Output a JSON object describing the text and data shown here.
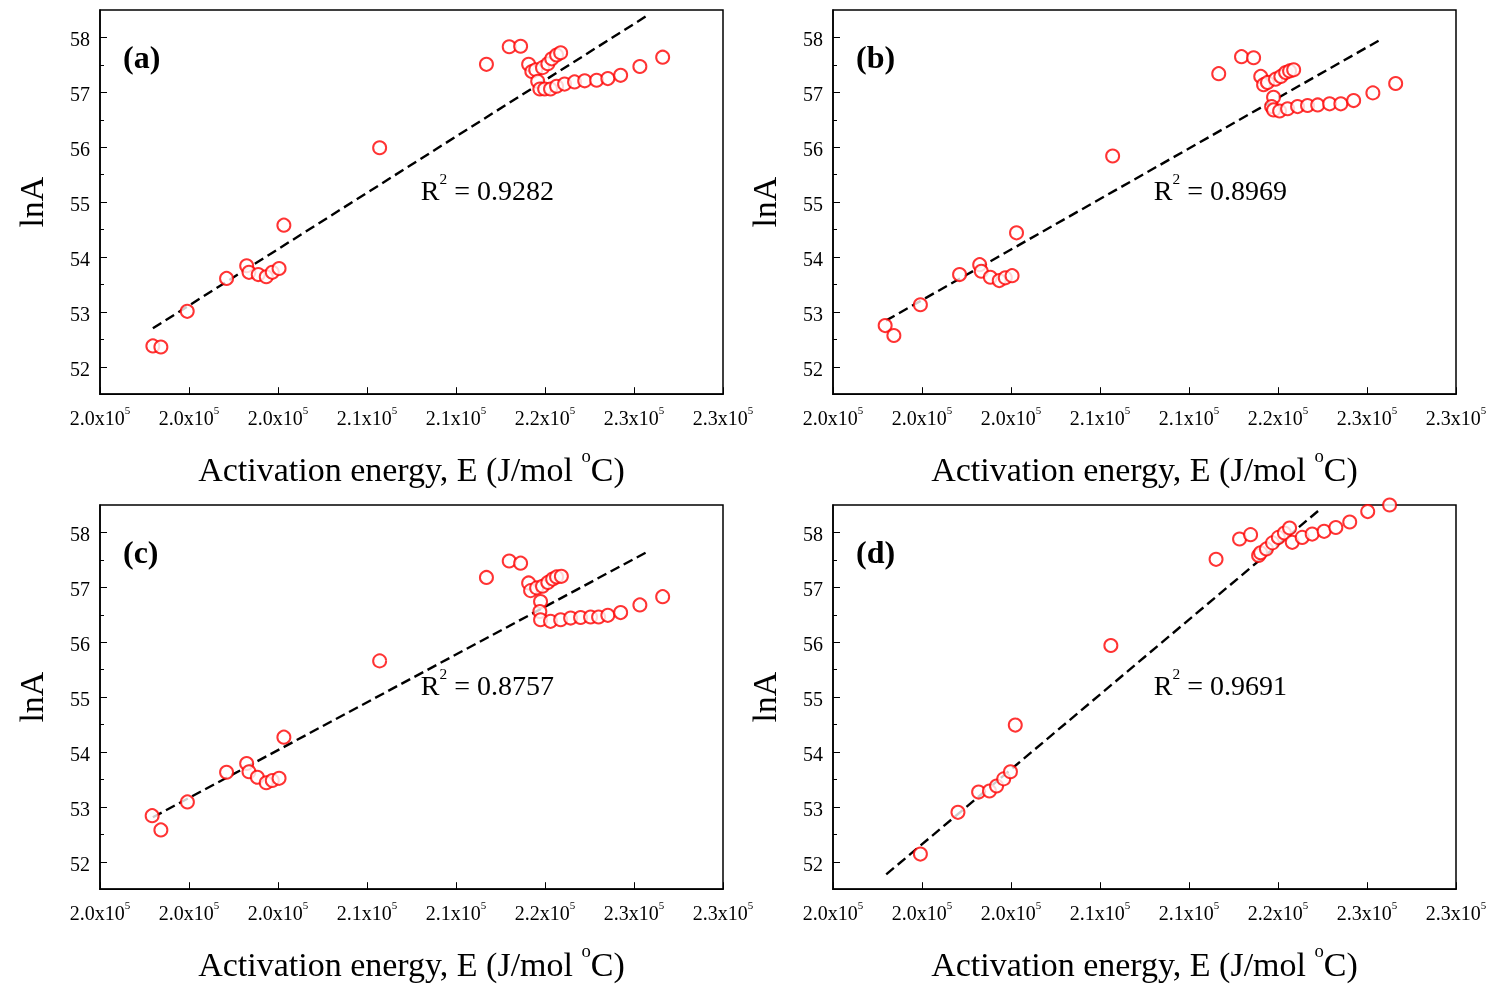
{
  "chart_data": [
    {
      "type": "scatter",
      "title": "(a)",
      "xlabel": "Activation energy, E (J/mol $^{o}$C)",
      "ylabel": "lnA",
      "annotations": [
        "R$^{2}$ = 0.9282"
      ],
      "xlim": [
        195000,
        230000
      ],
      "ylim": [
        51.5,
        58.5
      ],
      "xticks": [
        {
          "value": 195000,
          "label": "2.0x10$^{5}$"
        },
        {
          "value": 200000,
          "label": "2.0x10$^{5}$"
        },
        {
          "value": 205000,
          "label": "2.0x10$^{5}$"
        },
        {
          "value": 210000,
          "label": "2.1x10$^{5}$"
        },
        {
          "value": 215000,
          "label": "2.1x10$^{5}$"
        },
        {
          "value": 220000,
          "label": "2.2x10$^{5}$"
        },
        {
          "value": 225000,
          "label": "2.3x10$^{5}$"
        },
        {
          "value": 230000,
          "label": "2.3x10$^{5}$"
        }
      ],
      "yticks": [
        52,
        53,
        54,
        55,
        56,
        57,
        58
      ],
      "series": [
        {
          "type": "scatter",
          "color": "#ff0000",
          "marker": "circle",
          "x": [
            197970,
            198420,
            199900,
            202110,
            203240,
            203370,
            203890,
            204340,
            204680,
            205060,
            205330,
            210710,
            216710,
            217990,
            218630,
            219080,
            219260,
            219480,
            219590,
            219710,
            219980,
            220310,
            220650,
            221100,
            221660,
            222230,
            222900,
            223530,
            224250,
            225330,
            226610,
            219860,
            220160,
            220380,
            220650,
            220880
          ],
          "values": [
            52.38,
            52.36,
            53.01,
            53.61,
            53.84,
            53.72,
            53.68,
            53.64,
            53.72,
            53.79,
            54.58,
            55.99,
            57.51,
            57.83,
            57.84,
            57.51,
            57.38,
            57.41,
            57.2,
            57.06,
            57.06,
            57.06,
            57.11,
            57.15,
            57.19,
            57.21,
            57.22,
            57.25,
            57.31,
            57.47,
            57.64,
            57.45,
            57.52,
            57.61,
            57.68,
            57.72
          ]
        },
        {
          "type": "line",
          "color": "#000000",
          "line_style": "dashed",
          "marker": "none",
          "x": [
            197970,
            225650
          ],
          "values": [
            52.7,
            58.38
          ]
        }
      ]
    },
    {
      "type": "scatter",
      "title": "(b)",
      "xlabel": "Activation energy, E (J/mol $^{o}$C)",
      "ylabel": "lnA",
      "annotations": [
        "R$^{2}$ = 0.8969"
      ],
      "xlim": [
        195000,
        230000
      ],
      "ylim": [
        51.5,
        58.5
      ],
      "xticks": [
        {
          "value": 195000,
          "label": "2.0x10$^{5}$"
        },
        {
          "value": 200000,
          "label": "2.0x10$^{5}$"
        },
        {
          "value": 205000,
          "label": "2.0x10$^{5}$"
        },
        {
          "value": 210000,
          "label": "2.1x10$^{5}$"
        },
        {
          "value": 215000,
          "label": "2.1x10$^{5}$"
        },
        {
          "value": 220000,
          "label": "2.2x10$^{5}$"
        },
        {
          "value": 225000,
          "label": "2.3x10$^{5}$"
        },
        {
          "value": 230000,
          "label": "2.3x10$^{5}$"
        }
      ],
      "yticks": [
        52,
        53,
        54,
        55,
        56,
        57,
        58
      ],
      "series": [
        {
          "type": "scatter",
          "color": "#ff0000",
          "marker": "circle",
          "x": [
            197930,
            198420,
            199910,
            202110,
            203240,
            203330,
            203840,
            204340,
            204680,
            205060,
            205310,
            210710,
            216670,
            217950,
            218630,
            219030,
            219190,
            219410,
            219750,
            219640,
            219750,
            220090,
            220540,
            221100,
            221660,
            222230,
            222900,
            223530,
            224250,
            225330,
            226610,
            219860,
            220160,
            220430,
            220650,
            220880
          ],
          "values": [
            52.75,
            52.57,
            53.13,
            53.68,
            53.86,
            53.74,
            53.63,
            53.57,
            53.62,
            53.66,
            54.44,
            55.84,
            57.34,
            57.65,
            57.63,
            57.29,
            57.14,
            57.18,
            56.91,
            56.74,
            56.68,
            56.66,
            56.7,
            56.74,
            56.76,
            56.77,
            56.79,
            56.79,
            56.85,
            56.99,
            57.16,
            57.24,
            57.29,
            57.36,
            57.39,
            57.41
          ]
        },
        {
          "type": "line",
          "color": "#000000",
          "line_style": "dashed",
          "marker": "none",
          "x": [
            197970,
            225650
          ],
          "values": [
            52.84,
            57.94
          ]
        }
      ]
    },
    {
      "type": "scatter",
      "title": "(c)",
      "xlabel": "Activation energy, E (J/mol $^{o}$C)",
      "ylabel": "lnA",
      "annotations": [
        "R$^{2}$ = 0.8757"
      ],
      "xlim": [
        195000,
        230000
      ],
      "ylim": [
        51.5,
        58.5
      ],
      "xticks": [
        {
          "value": 195000,
          "label": "2.0x10$^{5}$"
        },
        {
          "value": 200000,
          "label": "2.0x10$^{5}$"
        },
        {
          "value": 205000,
          "label": "2.0x10$^{5}$"
        },
        {
          "value": 210000,
          "label": "2.1x10$^{5}$"
        },
        {
          "value": 215000,
          "label": "2.1x10$^{5}$"
        },
        {
          "value": 220000,
          "label": "2.2x10$^{5}$"
        },
        {
          "value": 225000,
          "label": "2.3x10$^{5}$"
        },
        {
          "value": 230000,
          "label": "2.3x10$^{5}$"
        }
      ],
      "yticks": [
        52,
        53,
        54,
        55,
        56,
        57,
        58
      ],
      "series": [
        {
          "type": "scatter",
          "color": "#ff0000",
          "marker": "circle",
          "x": [
            197930,
            198420,
            199910,
            202110,
            203240,
            203370,
            203840,
            204340,
            204680,
            205060,
            205330,
            210710,
            216710,
            217990,
            218630,
            219080,
            219190,
            219530,
            219750,
            219710,
            219750,
            220310,
            220880,
            221440,
            222000,
            222560,
            223010,
            223530,
            224250,
            225330,
            226610,
            219860,
            220160,
            220430,
            220650,
            220920
          ],
          "values": [
            52.84,
            52.58,
            53.09,
            53.63,
            53.79,
            53.64,
            53.54,
            53.44,
            53.48,
            53.52,
            54.27,
            55.66,
            57.18,
            57.48,
            57.44,
            57.08,
            56.94,
            56.99,
            56.74,
            56.56,
            56.41,
            56.38,
            56.41,
            56.44,
            56.45,
            56.46,
            56.46,
            56.49,
            56.54,
            56.68,
            56.83,
            57.02,
            57.09,
            57.15,
            57.19,
            57.2
          ]
        },
        {
          "type": "line",
          "color": "#000000",
          "line_style": "dashed",
          "marker": "none",
          "x": [
            197970,
            225650
          ],
          "values": [
            52.81,
            57.63
          ]
        }
      ]
    },
    {
      "type": "scatter",
      "title": "(d)",
      "xlabel": "Activation energy, E (J/mol $^{o}$C)",
      "ylabel": "lnA",
      "annotations": [
        "R$^{2}$ = 0.9691"
      ],
      "xlim": [
        195000,
        230000
      ],
      "ylim": [
        51.5,
        58.5
      ],
      "xticks": [
        {
          "value": 195000,
          "label": "2.0x10$^{5}$"
        },
        {
          "value": 200000,
          "label": "2.0x10$^{5}$"
        },
        {
          "value": 205000,
          "label": "2.0x10$^{5}$"
        },
        {
          "value": 210000,
          "label": "2.1x10$^{5}$"
        },
        {
          "value": 215000,
          "label": "2.1x10$^{5}$"
        },
        {
          "value": 220000,
          "label": "2.2x10$^{5}$"
        },
        {
          "value": 225000,
          "label": "2.3x10$^{5}$"
        },
        {
          "value": 230000,
          "label": "2.3x10$^{5}$"
        }
      ],
      "yticks": [
        52,
        53,
        54,
        55,
        56,
        57,
        58
      ],
      "series": [
        {
          "type": "scatter",
          "color": "#ff0000",
          "marker": "circle",
          "x": [
            199910,
            202020,
            203180,
            203790,
            204190,
            204590,
            204970,
            205240,
            210610,
            216520,
            217840,
            218460,
            218910,
            219020,
            219350,
            219690,
            220020,
            220360,
            220650,
            220800,
            221360,
            221920,
            222590,
            223250,
            224030,
            225040,
            226270
          ],
          "values": [
            52.14,
            52.9,
            53.27,
            53.29,
            53.38,
            53.51,
            53.64,
            54.49,
            55.94,
            57.51,
            57.88,
            57.96,
            57.58,
            57.63,
            57.7,
            57.81,
            57.91,
            57.99,
            58.08,
            57.82,
            57.91,
            57.97,
            58.02,
            58.09,
            58.19,
            58.38,
            58.5
          ]
        },
        {
          "type": "line",
          "color": "#000000",
          "line_style": "dashed",
          "marker": "none",
          "x": [
            197990,
            222250
          ],
          "values": [
            51.77,
            58.39
          ]
        }
      ]
    }
  ]
}
